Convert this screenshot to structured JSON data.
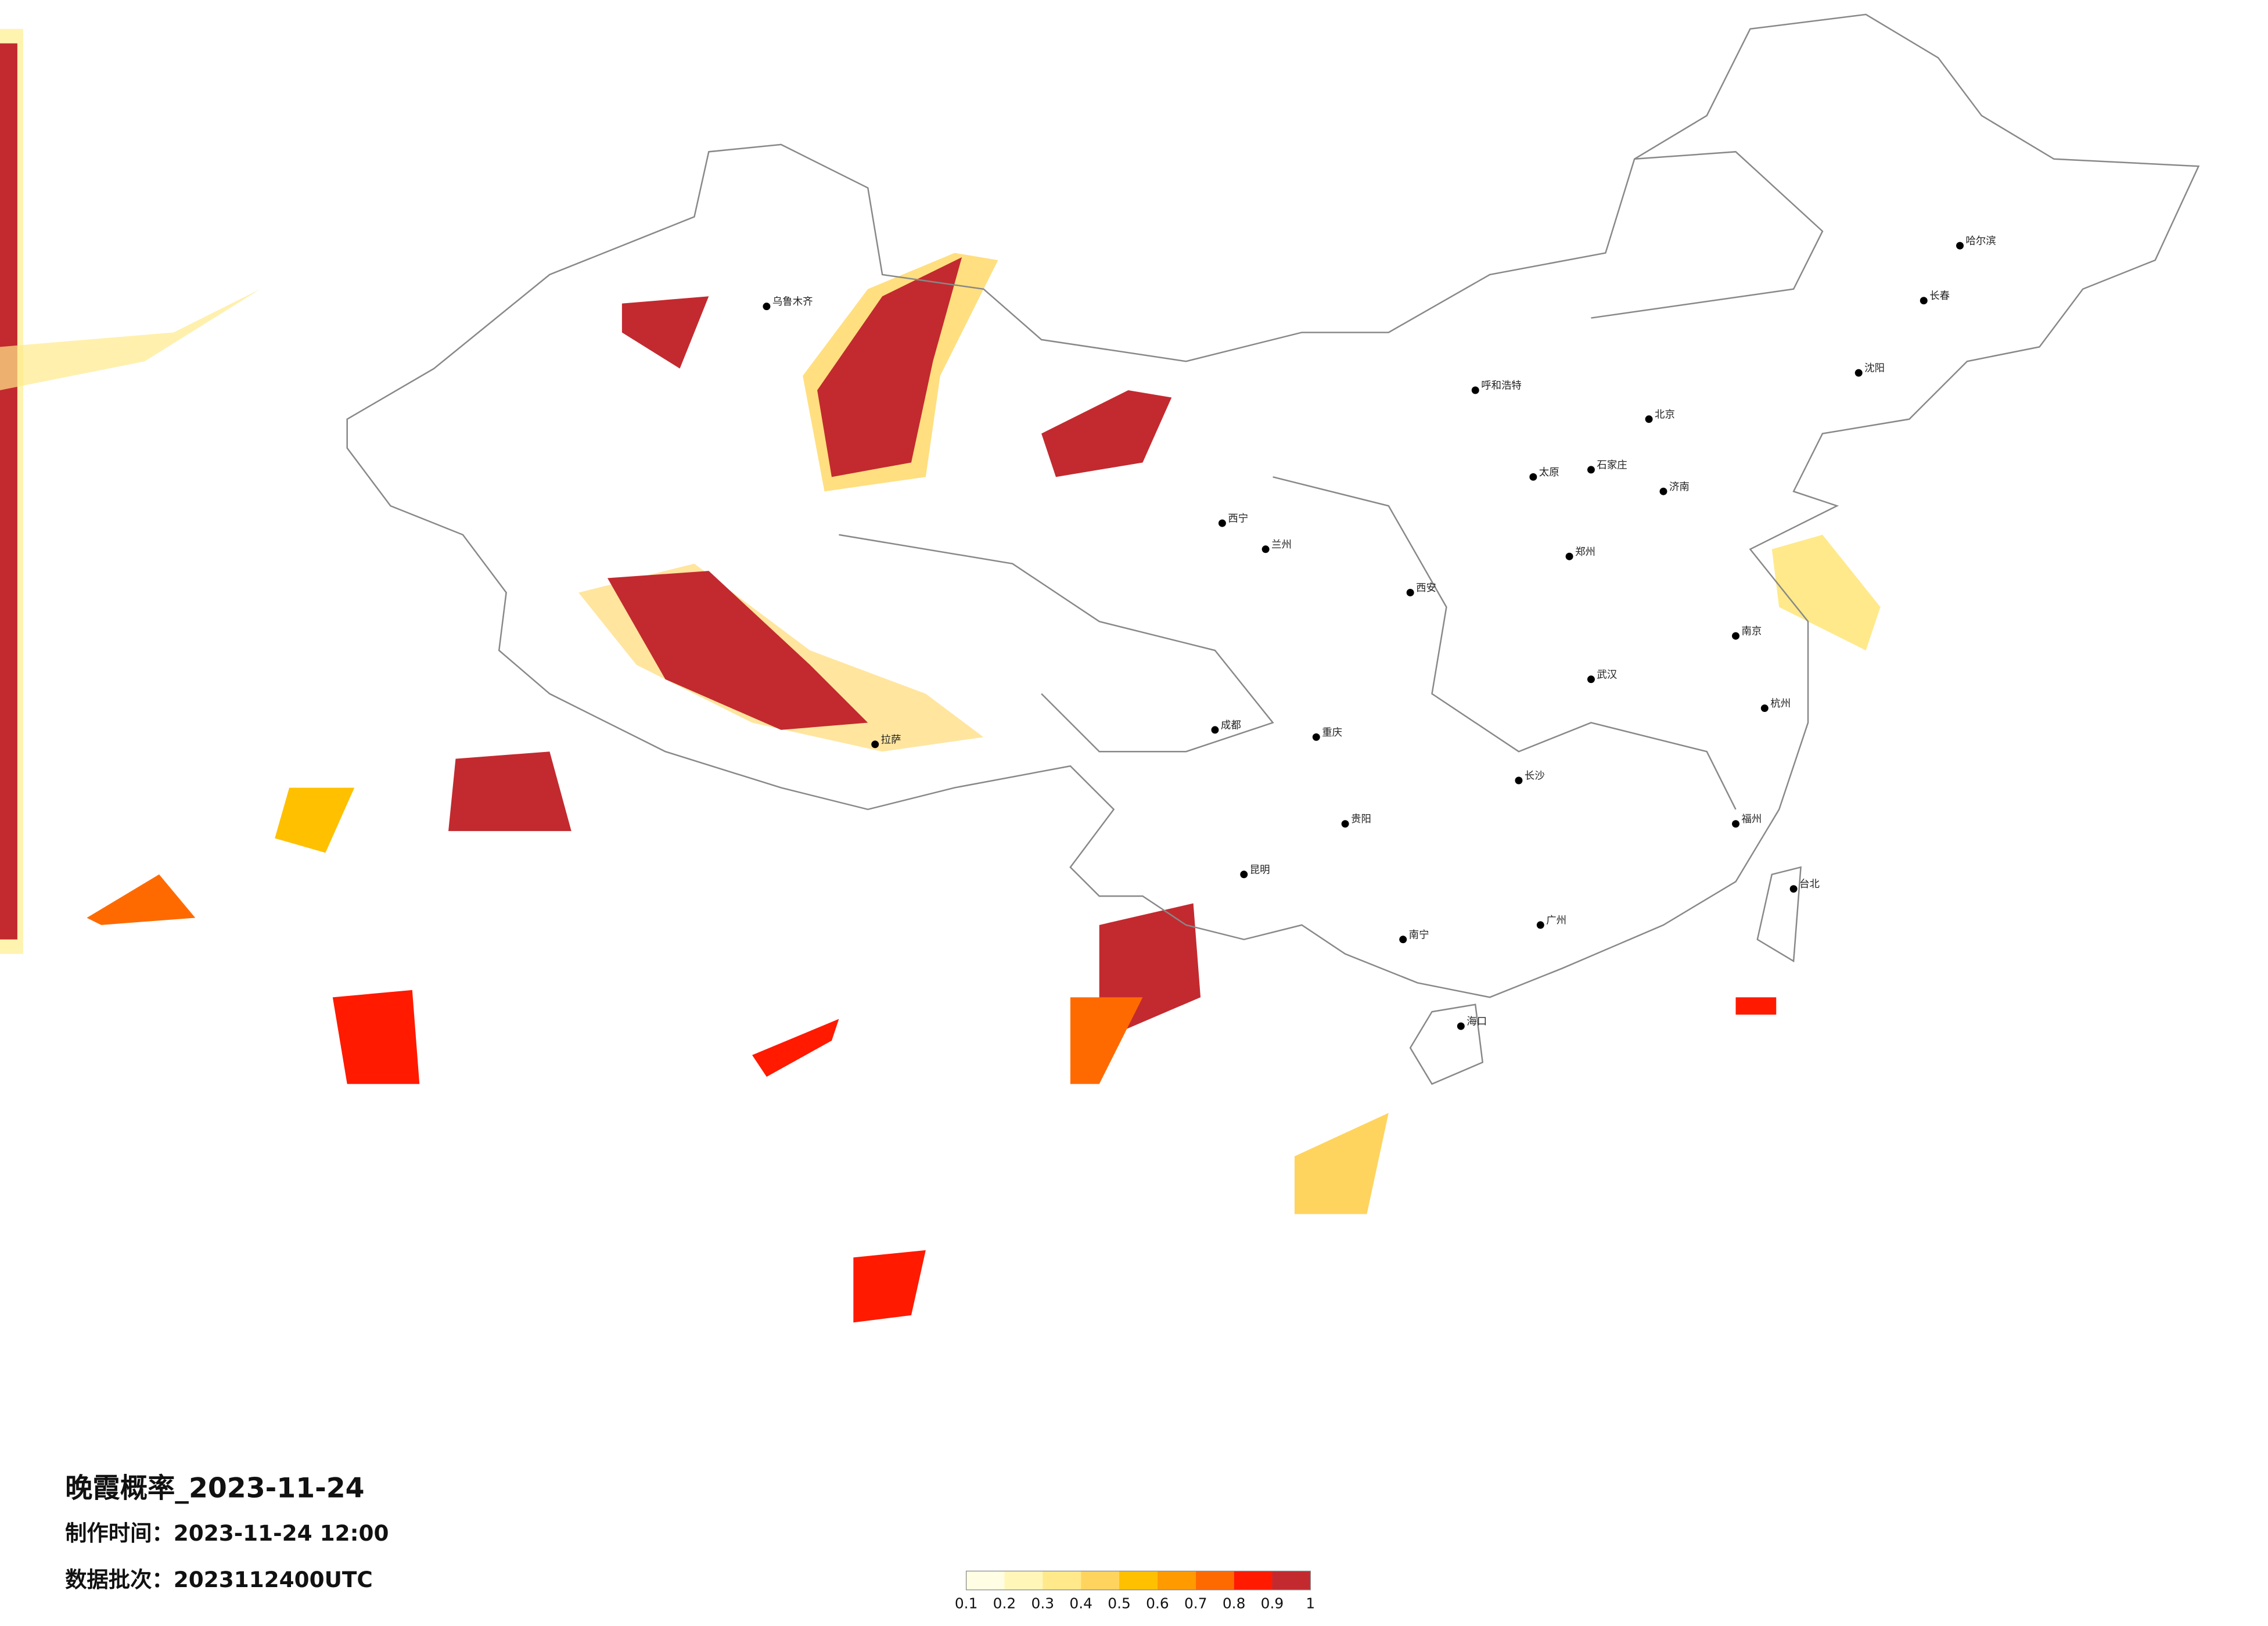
{
  "title": "晚霞概率_2023-11-24",
  "info": [
    "制作时间：2023-11-24 12:00",
    "数据批次：2023112400UTC"
  ],
  "colorbar": {
    "colors": [
      "#fffde3",
      "#fff6b8",
      "#ffe98a",
      "#ffd45e",
      "#ffc000",
      "#ff9a00",
      "#ff6a00",
      "#ff1a00",
      "#c22a2f"
    ],
    "ticks": [
      0.1,
      0.2,
      0.3,
      0.4,
      0.5,
      0.6,
      0.7,
      0.8,
      0.9,
      1
    ]
  },
  "cities": [
    "乌鲁木齐",
    "拉萨",
    "西宁",
    "兰州",
    "成都",
    "重庆",
    "昆明",
    "贵阳",
    "南宁",
    "广州",
    "长沙",
    "武汉",
    "南京",
    "杭州",
    "福州",
    "西安",
    "郑州",
    "济南",
    "太原",
    "石家庄",
    "呼和浩特",
    "北京",
    "哈尔滨",
    "长春",
    "沈阳",
    "海口",
    "台北"
  ]
}
